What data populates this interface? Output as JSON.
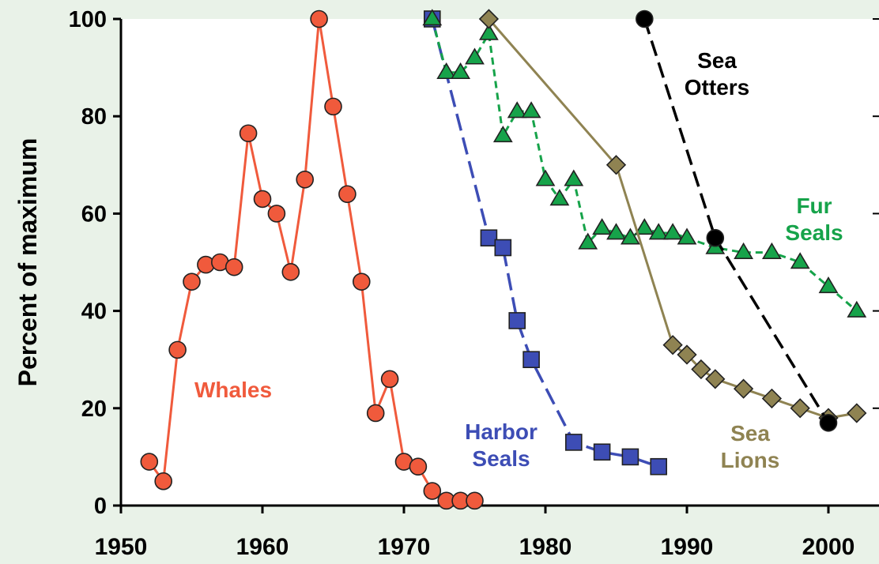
{
  "colors": {
    "background": "#e9f2e8",
    "plot_area": "#ffffff",
    "axis": "#000000"
  },
  "chart_data": {
    "type": "line",
    "title": "",
    "xlabel": "",
    "ylabel": "Percent of maximum",
    "xlim": [
      1950,
      2003
    ],
    "ylim": [
      0,
      100
    ],
    "x_ticks": [
      1950,
      1960,
      1970,
      1980,
      1990,
      2000
    ],
    "y_ticks": [
      0,
      20,
      40,
      60,
      80,
      100
    ],
    "grid": false,
    "series": [
      {
        "name": "Whales",
        "color": "#f05a3c",
        "line_style": "solid",
        "marker": "circle",
        "label_lines": [
          "Whales"
        ],
        "x": [
          1952,
          1953,
          1954,
          1955,
          1956,
          1957,
          1958,
          1959,
          1960,
          1961,
          1962,
          1963,
          1964,
          1965,
          1966,
          1967,
          1968,
          1969,
          1970,
          1971,
          1972,
          1973,
          1974,
          1975
        ],
        "y": [
          9,
          5,
          32,
          46,
          49.5,
          50,
          49,
          76.5,
          63,
          60,
          48,
          67,
          100,
          82,
          64,
          46,
          19,
          26,
          9,
          8,
          3,
          1,
          1,
          1
        ]
      },
      {
        "name": "Harbor Seals",
        "color": "#3d4db5",
        "line_style": "dashed",
        "marker": "square",
        "label_lines": [
          "Harbor",
          "Seals"
        ],
        "x": [
          1972,
          1976,
          1977,
          1978,
          1979,
          1982,
          1984,
          1986,
          1988
        ],
        "y": [
          100,
          55,
          53,
          38,
          30,
          13,
          11,
          10,
          8
        ]
      },
      {
        "name": "Fur Seals",
        "color": "#16a34a",
        "line_style": "dashed",
        "marker": "triangle",
        "label_lines": [
          "Fur",
          "Seals"
        ],
        "x": [
          1972,
          1973,
          1974,
          1975,
          1976,
          1977,
          1978,
          1979,
          1980,
          1981,
          1982,
          1983,
          1984,
          1985,
          1986,
          1987,
          1988,
          1989,
          1990,
          1992,
          1994,
          1996,
          1998,
          2000,
          2002
        ],
        "y": [
          100,
          89,
          89,
          92,
          97,
          76,
          81,
          81,
          67,
          63,
          67,
          54,
          57,
          56,
          55,
          57,
          56,
          56,
          55,
          53,
          52,
          52,
          50,
          45,
          40
        ]
      },
      {
        "name": "Sea Lions",
        "color": "#8f8352",
        "line_style": "solid",
        "marker": "diamond",
        "label_lines": [
          "Sea",
          "Lions"
        ],
        "x": [
          1976,
          1985,
          1989,
          1990,
          1991,
          1992,
          1994,
          1996,
          1998,
          2000,
          2002
        ],
        "y": [
          100,
          70,
          33,
          31,
          28,
          26,
          24,
          22,
          20,
          18,
          19
        ]
      },
      {
        "name": "Sea Otters",
        "color": "#000000",
        "line_style": "dashed",
        "marker": "circle",
        "label_lines": [
          "Sea",
          "Otters"
        ],
        "x": [
          1987,
          1992,
          2000
        ],
        "y": [
          100,
          55,
          17
        ]
      }
    ]
  }
}
